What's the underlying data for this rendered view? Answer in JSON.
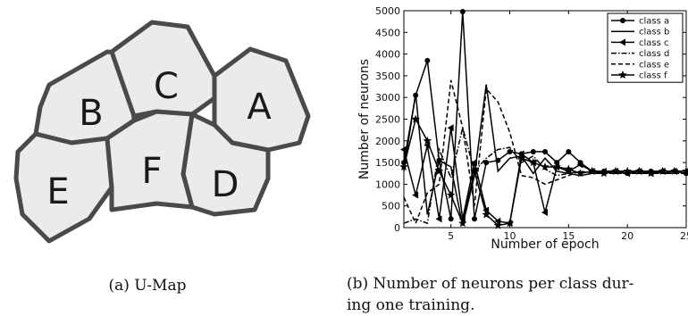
{
  "umap": {
    "labels": [
      "A",
      "B",
      "C",
      "D",
      "E",
      "F"
    ],
    "caption": "(a) U-Map"
  },
  "caption_b": {
    "line1": "(b) Number of neurons per class dur-",
    "line2": "ing one training."
  },
  "chart_data": {
    "type": "line",
    "xlabel": "Number of epoch",
    "ylabel": "Number of neurons",
    "xlim": [
      1,
      25
    ],
    "ylim": [
      0,
      5000
    ],
    "xticks": [
      5,
      10,
      15,
      20,
      25
    ],
    "yticks": [
      0,
      500,
      1000,
      1500,
      2000,
      2500,
      3000,
      3500,
      4000,
      4500,
      5000
    ],
    "grid": false,
    "legend_position": "top-right",
    "x": [
      1,
      2,
      3,
      4,
      5,
      6,
      7,
      8,
      9,
      10,
      11,
      12,
      13,
      14,
      15,
      16,
      17,
      18,
      19,
      20,
      21,
      22,
      23,
      24,
      25
    ],
    "series": [
      {
        "name": "class a",
        "style": "solid",
        "marker": "circle",
        "values": [
          1500,
          3050,
          3850,
          1550,
          200,
          4980,
          200,
          1500,
          1550,
          1750,
          1700,
          1750,
          1750,
          1500,
          1750,
          1500,
          1300,
          1300,
          1300,
          1250,
          1300,
          1300,
          1300,
          1300,
          1250
        ]
      },
      {
        "name": "class b",
        "style": "solid",
        "marker": "none",
        "values": [
          1300,
          3100,
          300,
          1550,
          1400,
          50,
          1200,
          3300,
          1300,
          1600,
          1650,
          1250,
          1600,
          1300,
          1250,
          1200,
          1250,
          1250,
          1300,
          1300,
          1300,
          1300,
          1250,
          1300,
          1300
        ]
      },
      {
        "name": "class c",
        "style": "solid",
        "marker": "triangle-left",
        "values": [
          1800,
          750,
          1900,
          200,
          2300,
          200,
          1500,
          400,
          150,
          100,
          1700,
          1500,
          350,
          1400,
          1300,
          1450,
          1300,
          1300,
          1300,
          1250,
          1300,
          1250,
          1300,
          1300,
          1300
        ]
      },
      {
        "name": "class d",
        "style": "dashdot",
        "marker": "none",
        "values": [
          100,
          200,
          100,
          1800,
          1150,
          2300,
          1300,
          1600,
          1800,
          1850,
          1500,
          1650,
          1350,
          1200,
          1250,
          1300,
          1250,
          1250,
          1250,
          1250,
          1250,
          1250,
          1250,
          1250,
          1250
        ]
      },
      {
        "name": "class e",
        "style": "dashed",
        "marker": "none",
        "values": [
          700,
          100,
          800,
          1000,
          3400,
          2300,
          500,
          3200,
          2900,
          2200,
          1200,
          1150,
          1000,
          1100,
          1200,
          1300,
          1250,
          1250,
          1250,
          1250,
          1250,
          1250,
          1250,
          1250,
          1250
        ]
      },
      {
        "name": "class f",
        "style": "solid",
        "marker": "star",
        "values": [
          1400,
          2500,
          2000,
          1300,
          750,
          100,
          1300,
          300,
          50,
          100,
          1600,
          1500,
          1400,
          1400,
          1350,
          1250,
          1300,
          1250,
          1300,
          1300,
          1300,
          1250,
          1300,
          1300,
          1300
        ]
      }
    ]
  }
}
